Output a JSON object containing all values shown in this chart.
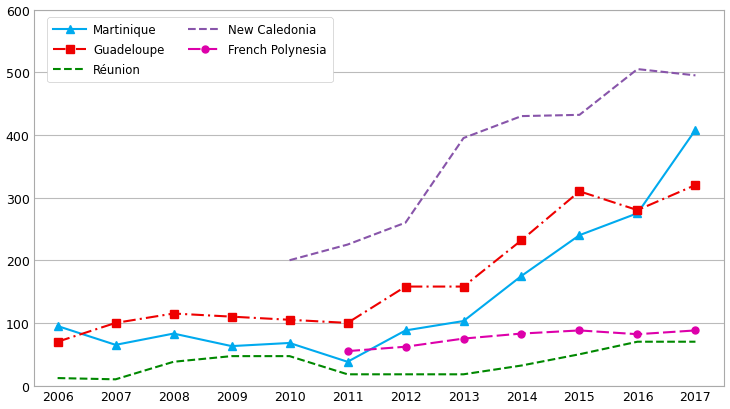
{
  "years": [
    2006,
    2007,
    2008,
    2009,
    2010,
    2011,
    2012,
    2013,
    2014,
    2015,
    2016,
    2017
  ],
  "martinique": [
    95,
    65,
    83,
    63,
    68,
    38,
    88,
    103,
    175,
    240,
    275,
    408
  ],
  "guadeloupe": [
    70,
    100,
    115,
    110,
    105,
    100,
    158,
    158,
    232,
    310,
    280,
    320
  ],
  "reunion": [
    12,
    10,
    38,
    47,
    47,
    18,
    18,
    18,
    32,
    50,
    70,
    70
  ],
  "new_caledonia_years": [
    2010,
    2011,
    2012,
    2013,
    2014,
    2015,
    2016,
    2017
  ],
  "new_caledonia_vals": [
    200,
    225,
    260,
    395,
    430,
    432,
    505,
    495
  ],
  "french_polynesia_years": [
    2011,
    2012,
    2013,
    2014,
    2015,
    2016,
    2017
  ],
  "french_polynesia_vals": [
    55,
    62,
    75,
    83,
    88,
    82,
    88
  ],
  "martinique_color": "#00AAEE",
  "guadeloupe_color": "#EE0000",
  "reunion_color": "#008800",
  "new_caledonia_color": "#8855AA",
  "french_polynesia_color": "#DD00AA",
  "ylim": [
    0,
    600
  ],
  "yticks": [
    0,
    100,
    200,
    300,
    400,
    500,
    600
  ],
  "background_color": "#ffffff",
  "grid_color": "#bbbbbb"
}
